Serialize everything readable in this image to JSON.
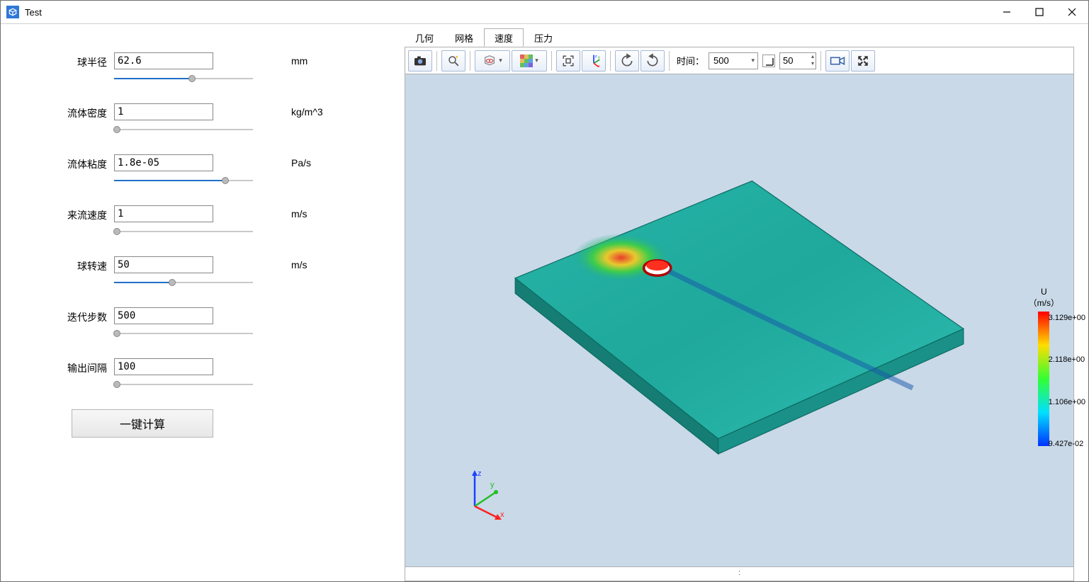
{
  "window": {
    "title": "Test"
  },
  "params": [
    {
      "label": "球半径",
      "value": "62.6",
      "unit": "mm",
      "slider_pct": 56
    },
    {
      "label": "流体密度",
      "value": "1",
      "unit": "kg/m^3",
      "slider_pct": 2
    },
    {
      "label": "流体粘度",
      "value": "1.8e-05",
      "unit": "Pa/s",
      "slider_pct": 80
    },
    {
      "label": "来流速度",
      "value": "1",
      "unit": "m/s",
      "slider_pct": 2
    },
    {
      "label": "球转速",
      "value": "50",
      "unit": "m/s",
      "slider_pct": 42
    },
    {
      "label": "迭代步数",
      "value": "500",
      "unit": "",
      "slider_pct": 2
    },
    {
      "label": "输出间隔",
      "value": "100",
      "unit": "",
      "slider_pct": 2
    }
  ],
  "calc_button": "一键计算",
  "tabs": [
    {
      "label": "几何",
      "active": false
    },
    {
      "label": "网格",
      "active": false
    },
    {
      "label": "速度",
      "active": true
    },
    {
      "label": "压力",
      "active": false
    }
  ],
  "toolbar": {
    "time_label": "时间：",
    "time_value": "500",
    "step_value": "50"
  },
  "legend": {
    "title": "U",
    "unit": "（m/s）",
    "ticks": [
      "3.129e+00",
      "2.118e+00",
      "1.106e+00",
      "9.427e-02"
    ],
    "colors": {
      "top": "#ff0000",
      "upper": "#ffdd00",
      "mid": "#33ff33",
      "lower": "#00e0ff",
      "bottom": "#0033ff"
    }
  },
  "viewport": {
    "bg": "#c9d9e8",
    "status_colon": ":"
  },
  "axis": {
    "x_color": "#ff2020",
    "y_color": "#20c020",
    "z_color": "#2040ff"
  }
}
